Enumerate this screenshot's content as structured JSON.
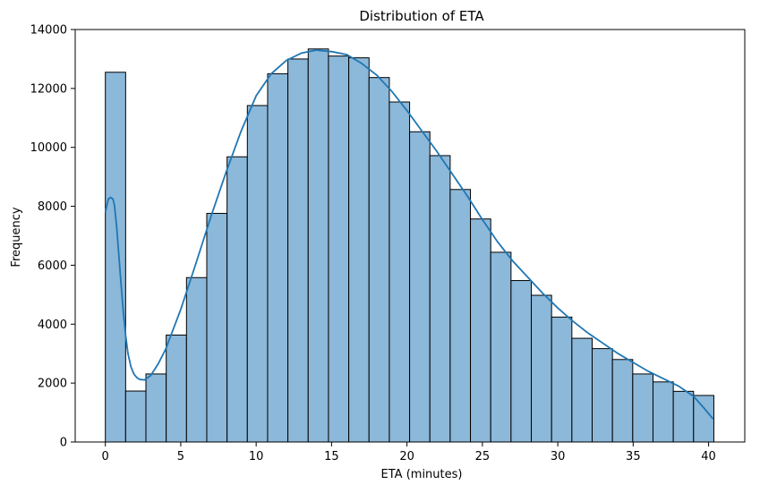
{
  "chart_data": {
    "type": "bar",
    "title": "Distribution of ETA",
    "xlabel": "ETA (minutes)",
    "ylabel": "Frequency",
    "xlim": [
      -2.0,
      42.4
    ],
    "ylim": [
      0,
      14000
    ],
    "xticks": [
      0,
      5,
      10,
      15,
      20,
      25,
      30,
      35,
      40
    ],
    "yticks": [
      0,
      2000,
      4000,
      6000,
      8000,
      10000,
      12000,
      14000
    ],
    "bin_width": 1.345,
    "bin_starts": [
      0.0,
      1.345,
      2.69,
      4.035,
      5.38,
      6.725,
      8.07,
      9.415,
      10.76,
      12.105,
      13.45,
      14.795,
      16.14,
      17.485,
      18.83,
      20.175,
      21.52,
      22.865,
      24.21,
      25.555,
      26.9,
      28.245,
      29.59,
      30.935,
      32.28,
      33.625,
      34.97,
      36.315,
      37.66,
      39.005
    ],
    "values": [
      12550,
      1730,
      2310,
      3630,
      5580,
      7760,
      9680,
      11420,
      12500,
      13000,
      13340,
      13100,
      13040,
      12370,
      11540,
      10530,
      9720,
      8570,
      7570,
      6440,
      5480,
      4980,
      4240,
      3520,
      3170,
      2800,
      2310,
      2040,
      1720,
      1580
    ],
    "kde": {
      "x": [
        0.0,
        0.2,
        0.35,
        0.5,
        0.6,
        0.75,
        0.9,
        1.05,
        1.2,
        1.35,
        1.5,
        1.7,
        1.9,
        2.1,
        2.3,
        2.6,
        3.0,
        3.5,
        4.0,
        5.0,
        6.0,
        7.0,
        8.0,
        9.0,
        10.0,
        11.0,
        12.0,
        13.0,
        14.0,
        15.0,
        16.0,
        17.0,
        18.0,
        19.0,
        20.0,
        21.0,
        22.0,
        23.0,
        24.0,
        25.0,
        26.0,
        27.0,
        28.0,
        29.0,
        30.0,
        31.0,
        32.0,
        33.0,
        34.0,
        35.0,
        36.0,
        37.0,
        38.0,
        39.0,
        39.7,
        40.3
      ],
      "y": [
        7800,
        8250,
        8300,
        8250,
        8050,
        7300,
        6300,
        5300,
        4350,
        3600,
        3000,
        2550,
        2300,
        2180,
        2120,
        2110,
        2250,
        2650,
        3150,
        4500,
        6050,
        7650,
        9150,
        10550,
        11750,
        12500,
        12950,
        13200,
        13300,
        13250,
        13150,
        12850,
        12450,
        11900,
        11250,
        10550,
        9850,
        9100,
        8350,
        7550,
        6800,
        6150,
        5600,
        5050,
        4550,
        4100,
        3700,
        3350,
        3000,
        2700,
        2400,
        2150,
        1900,
        1550,
        1150,
        780
      ]
    },
    "bar_color": "#8cb8d9",
    "bar_edge_color": "#000000",
    "kde_color": "#1f77b4",
    "grid": false,
    "legend": "none"
  }
}
